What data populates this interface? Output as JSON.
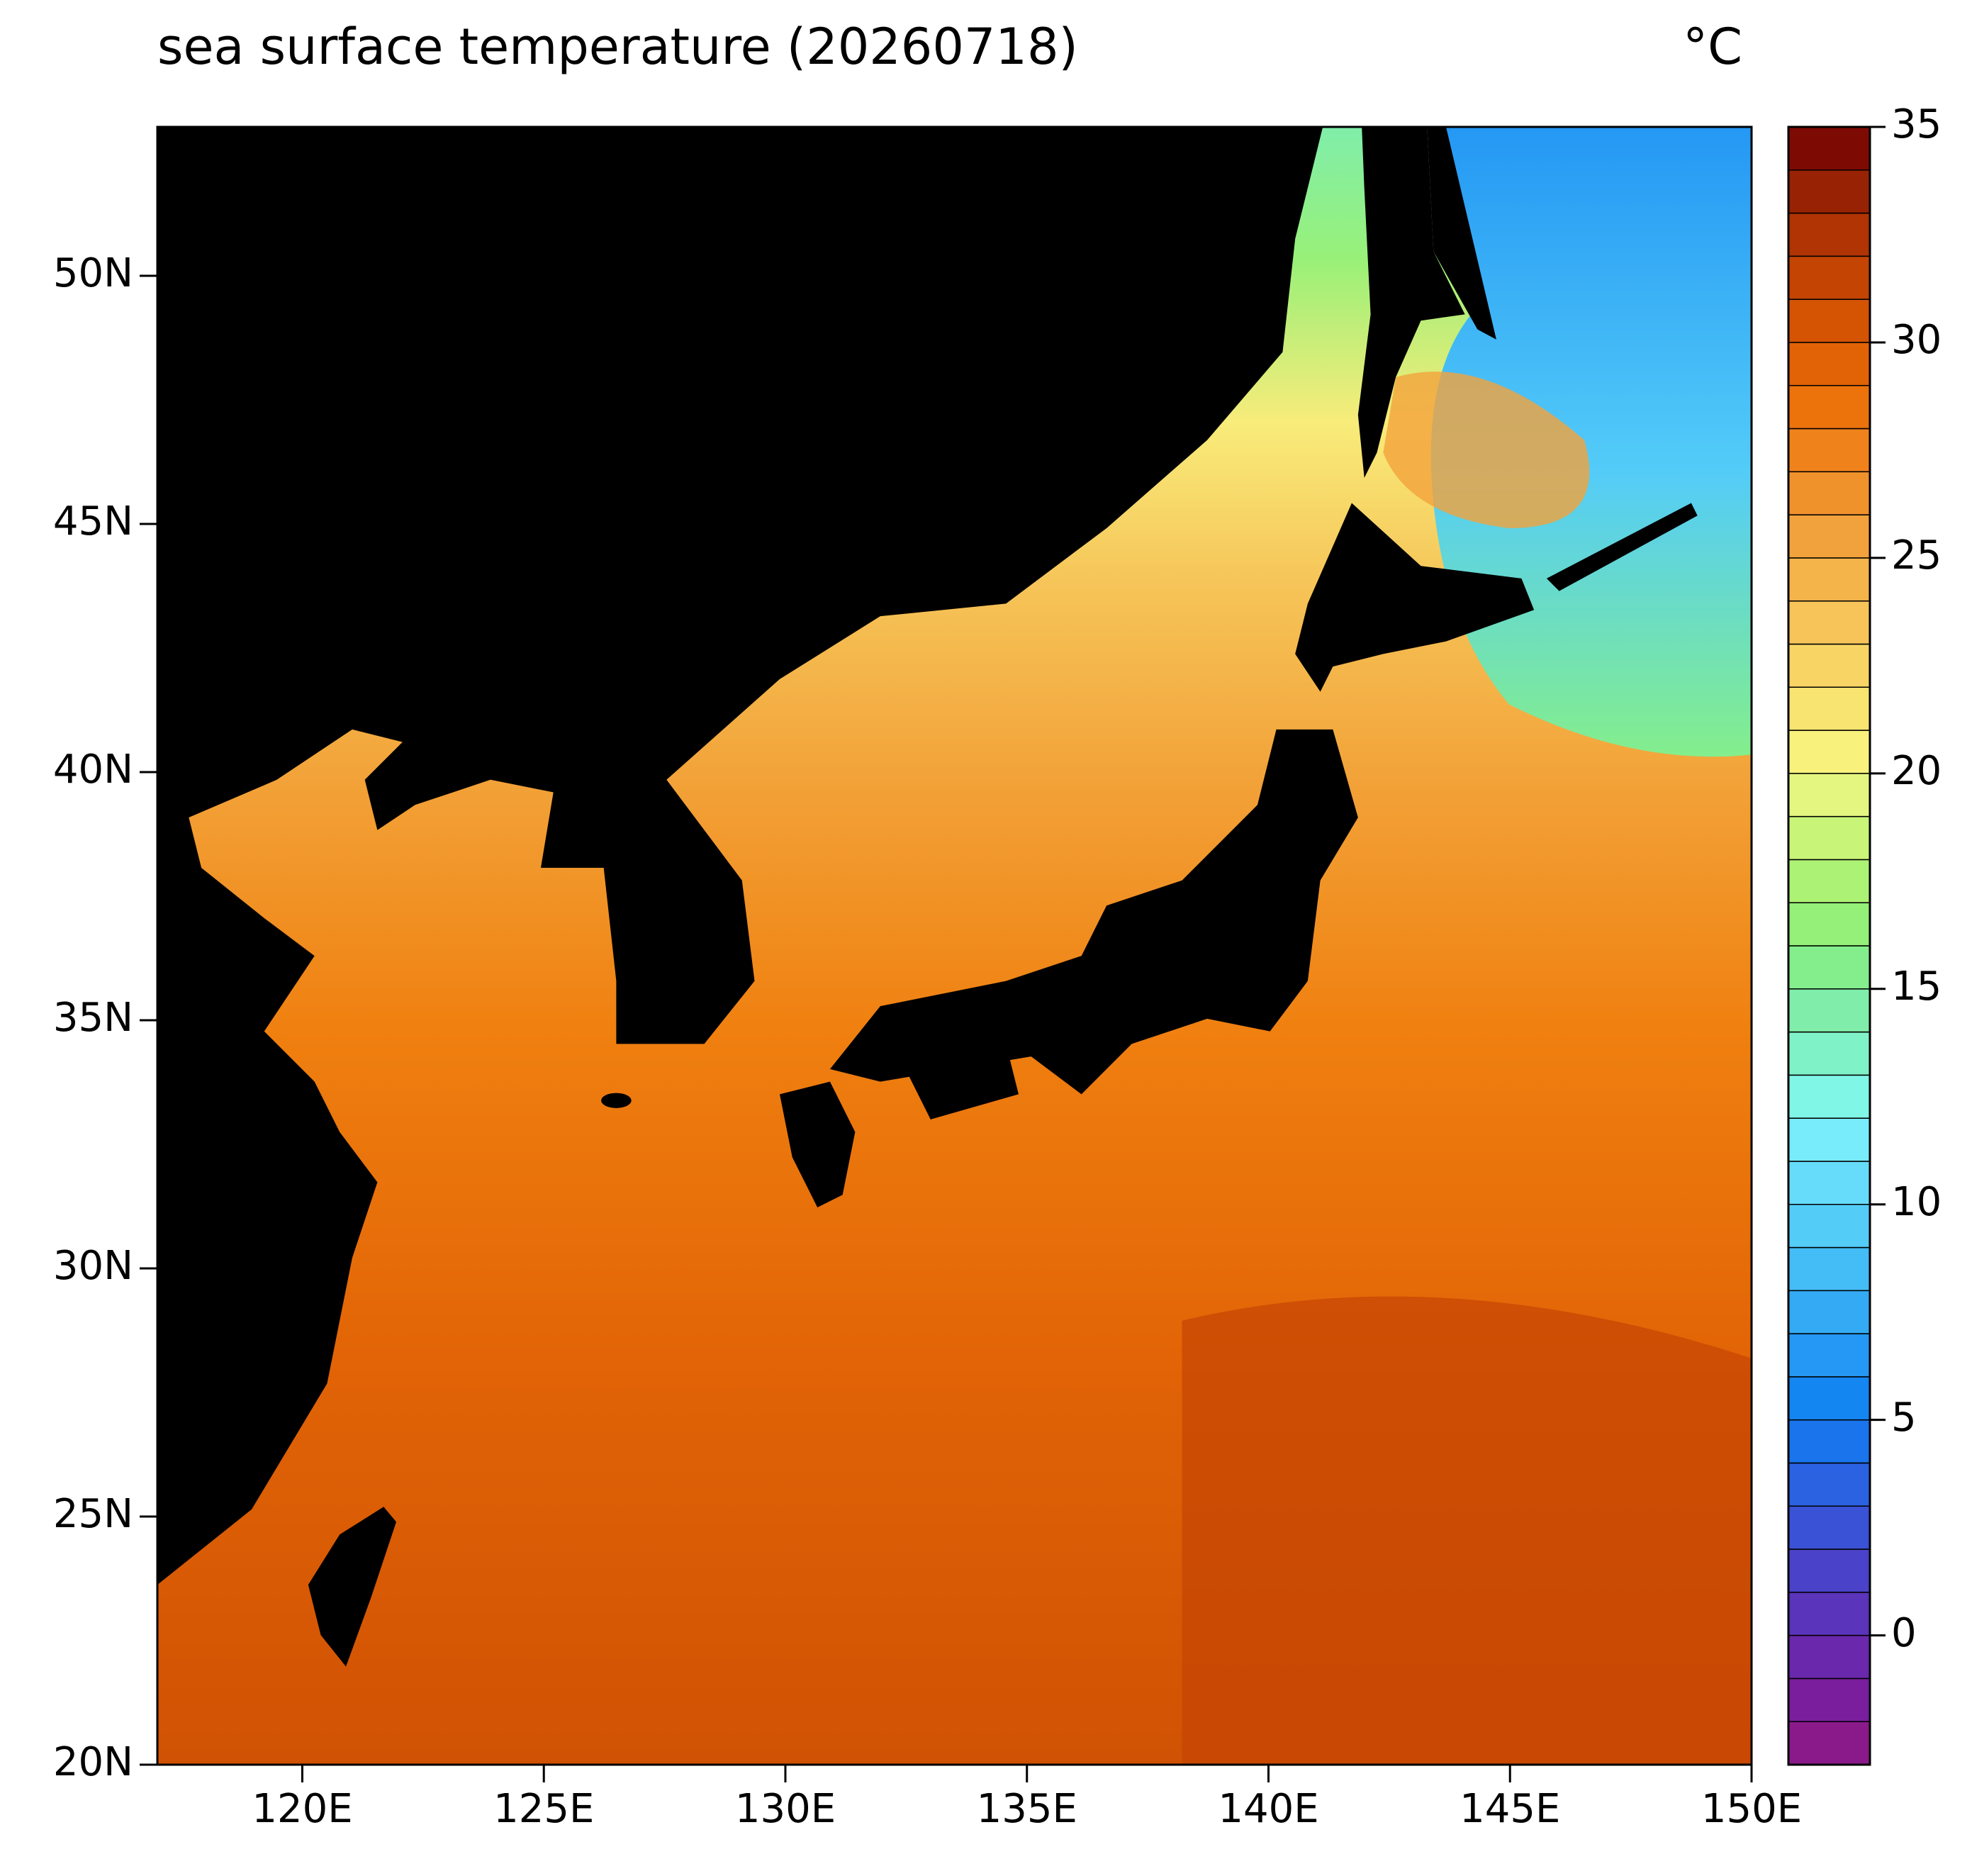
{
  "chart_data": {
    "type": "map",
    "title": "sea surface temperature (20260718)",
    "unit": "°C",
    "xlim": [
      117,
      150
    ],
    "ylim": [
      20,
      53
    ],
    "xticks": [
      {
        "value": 120,
        "label": "120E"
      },
      {
        "value": 125,
        "label": "125E"
      },
      {
        "value": 130,
        "label": "130E"
      },
      {
        "value": 135,
        "label": "135E"
      },
      {
        "value": 140,
        "label": "140E"
      },
      {
        "value": 145,
        "label": "145E"
      },
      {
        "value": 150,
        "label": "150E"
      }
    ],
    "yticks": [
      {
        "value": 20,
        "label": "20N"
      },
      {
        "value": 25,
        "label": "25N"
      },
      {
        "value": 30,
        "label": "30N"
      },
      {
        "value": 35,
        "label": "35N"
      },
      {
        "value": 40,
        "label": "40N"
      },
      {
        "value": 45,
        "label": "45N"
      },
      {
        "value": 50,
        "label": "50N"
      }
    ],
    "colorbar": {
      "lim": [
        -3,
        35
      ],
      "ticks": [
        0,
        5,
        10,
        15,
        20,
        25,
        30,
        35
      ],
      "colors": [
        "#8a1a8a",
        "#7a1e9e",
        "#6a28ac",
        "#5a34ba",
        "#4a42c8",
        "#3a52d6",
        "#2a62e2",
        "#1a74ec",
        "#1486f2",
        "#2498f4",
        "#34aaf4",
        "#44bcf6",
        "#54ccf8",
        "#66dcfa",
        "#78ecfa",
        "#80f6e6",
        "#80f2c8",
        "#80eeaa",
        "#84ee8c",
        "#94f078",
        "#acf274",
        "#c8f478",
        "#e4f680",
        "#f8f27c",
        "#f8e470",
        "#f8d464",
        "#f6c458",
        "#f4b44a",
        "#f2a23c",
        "#f0922c",
        "#f0821c",
        "#ec720c",
        "#e26206",
        "#d45404",
        "#c44404",
        "#b03404",
        "#982204",
        "#7e0a04"
      ]
    }
  }
}
